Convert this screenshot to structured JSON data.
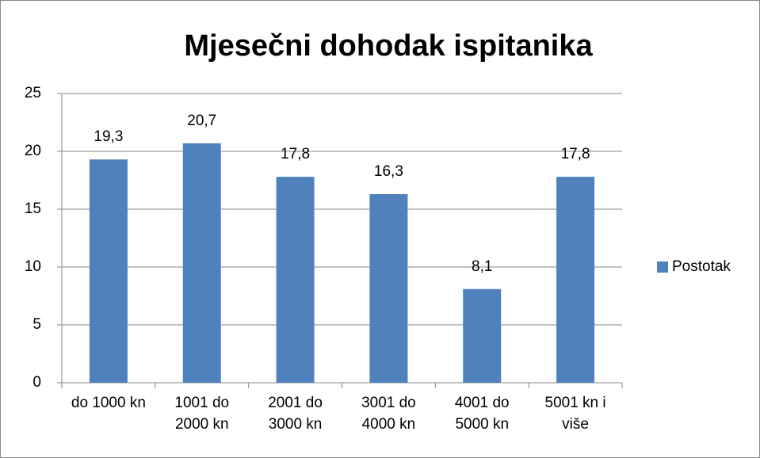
{
  "chart_data": {
    "type": "bar",
    "title": "Mjesečni dohodak ispitanika",
    "categories": [
      "do 1000 kn",
      "1001 do 2000 kn",
      "2001 do 3000 kn",
      "3001 do 4000 kn",
      "4001 do 5000 kn",
      "5001 kn i više"
    ],
    "series": [
      {
        "name": "Postotak",
        "color": "#4f81bd",
        "values": [
          19.3,
          20.7,
          17.8,
          16.3,
          8.1,
          17.8
        ],
        "value_labels": [
          "19,3",
          "20,7",
          "17,8",
          "16,3",
          "8,1",
          "17,8"
        ]
      }
    ],
    "ylim": [
      0,
      25
    ],
    "yticks": [
      0,
      5,
      10,
      15,
      20,
      25
    ],
    "grid": true,
    "legend": "right"
  }
}
